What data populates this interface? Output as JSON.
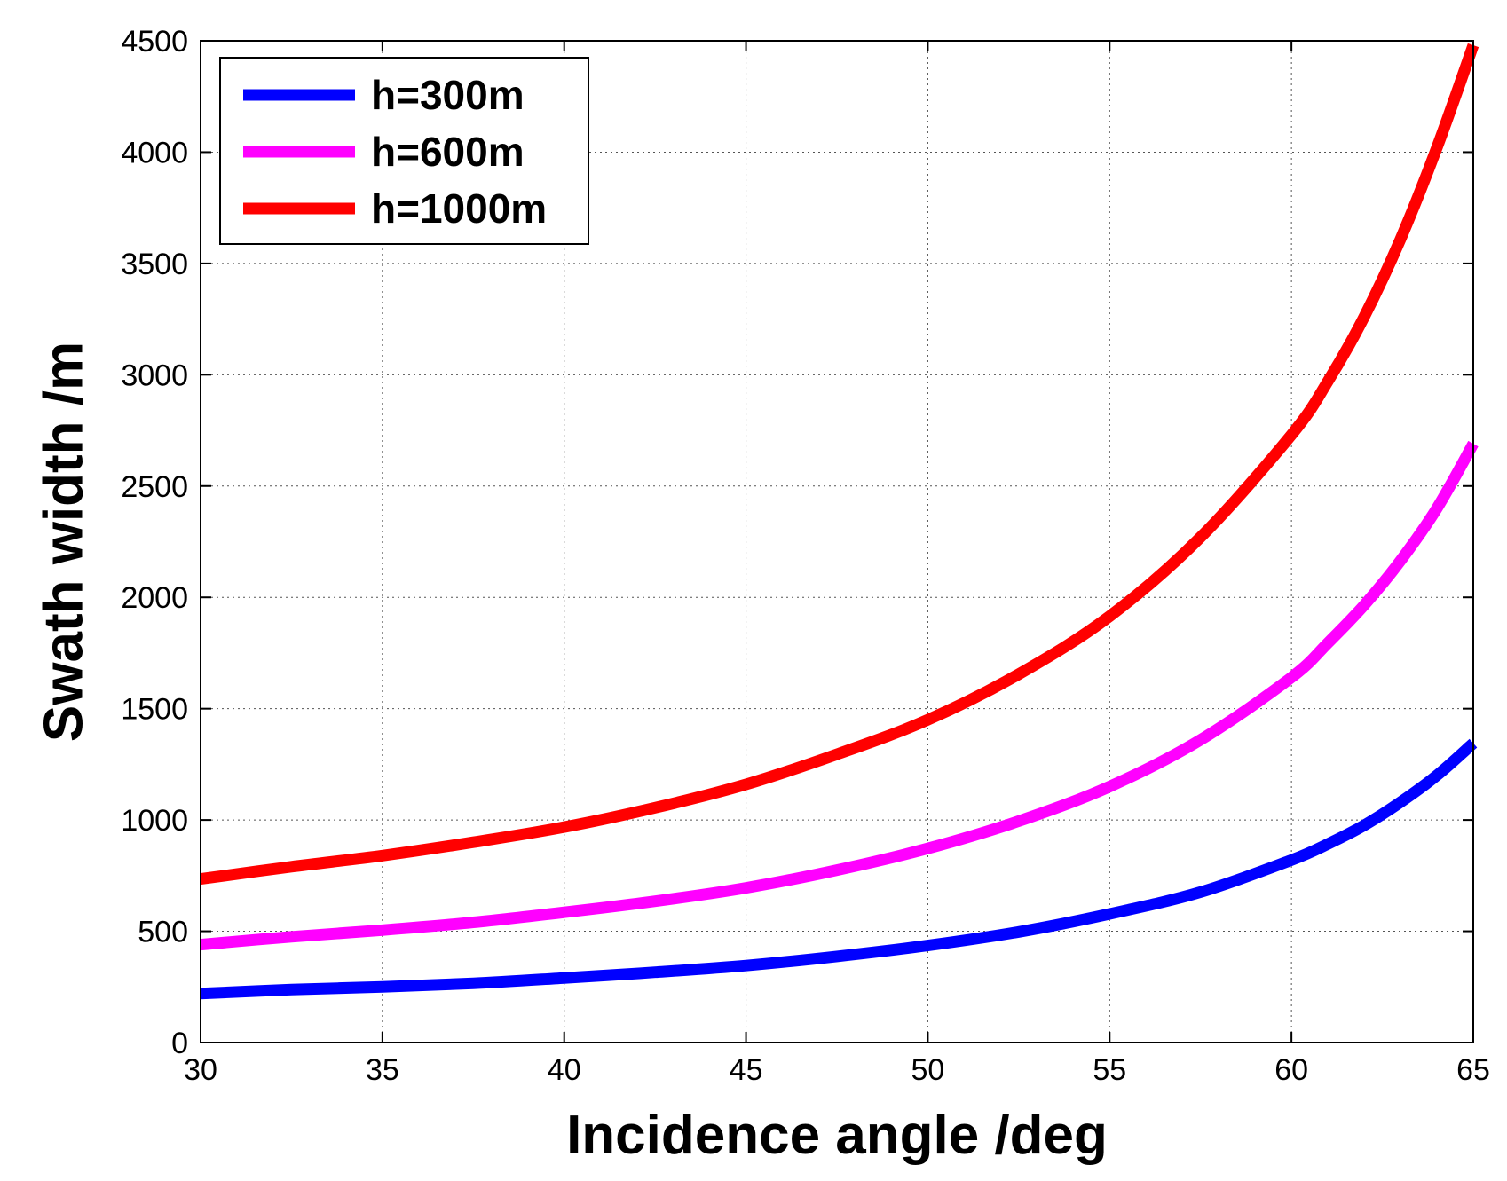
{
  "chart_data": {
    "type": "line",
    "title": "",
    "xlabel": "Incidence angle /deg",
    "ylabel": "Swath width /m",
    "xlim": [
      30,
      65
    ],
    "ylim": [
      0,
      4500
    ],
    "xticks": [
      30,
      35,
      40,
      45,
      50,
      55,
      60,
      65
    ],
    "yticks": [
      0,
      500,
      1000,
      1500,
      2000,
      2500,
      3000,
      3500,
      4000,
      4500
    ],
    "xtick_labels": [
      "30",
      "35",
      "40",
      "45",
      "50",
      "55",
      "60",
      "65"
    ],
    "ytick_labels": [
      "0",
      "500",
      "1000",
      "1500",
      "2000",
      "2500",
      "3000",
      "3500",
      "4000",
      "4500"
    ],
    "grid": true,
    "legend_position": "top-left",
    "x": [
      30,
      32.5,
      35,
      37.5,
      40,
      42.5,
      45,
      47.5,
      50,
      52.5,
      55,
      57.5,
      60,
      61,
      62,
      63,
      64,
      65
    ],
    "series": [
      {
        "name": "h=300m",
        "color": "#0000ff",
        "values": [
          220,
          238,
          250,
          266,
          290,
          316,
          346,
          387,
          436,
          497,
          578,
          676,
          820,
          892,
          976,
          1080,
          1200,
          1345
        ]
      },
      {
        "name": "h=600m",
        "color": "#ff00ff",
        "values": [
          440,
          475,
          505,
          540,
          585,
          635,
          695,
          775,
          872,
          995,
          1150,
          1360,
          1640,
          1795,
          1965,
          2165,
          2400,
          2690
        ]
      },
      {
        "name": "h=1000m",
        "color": "#ff0000",
        "values": [
          735,
          790,
          840,
          900,
          968,
          1055,
          1160,
          1295,
          1450,
          1655,
          1915,
          2270,
          2730,
          2970,
          3260,
          3610,
          4020,
          4480
        ]
      }
    ]
  }
}
